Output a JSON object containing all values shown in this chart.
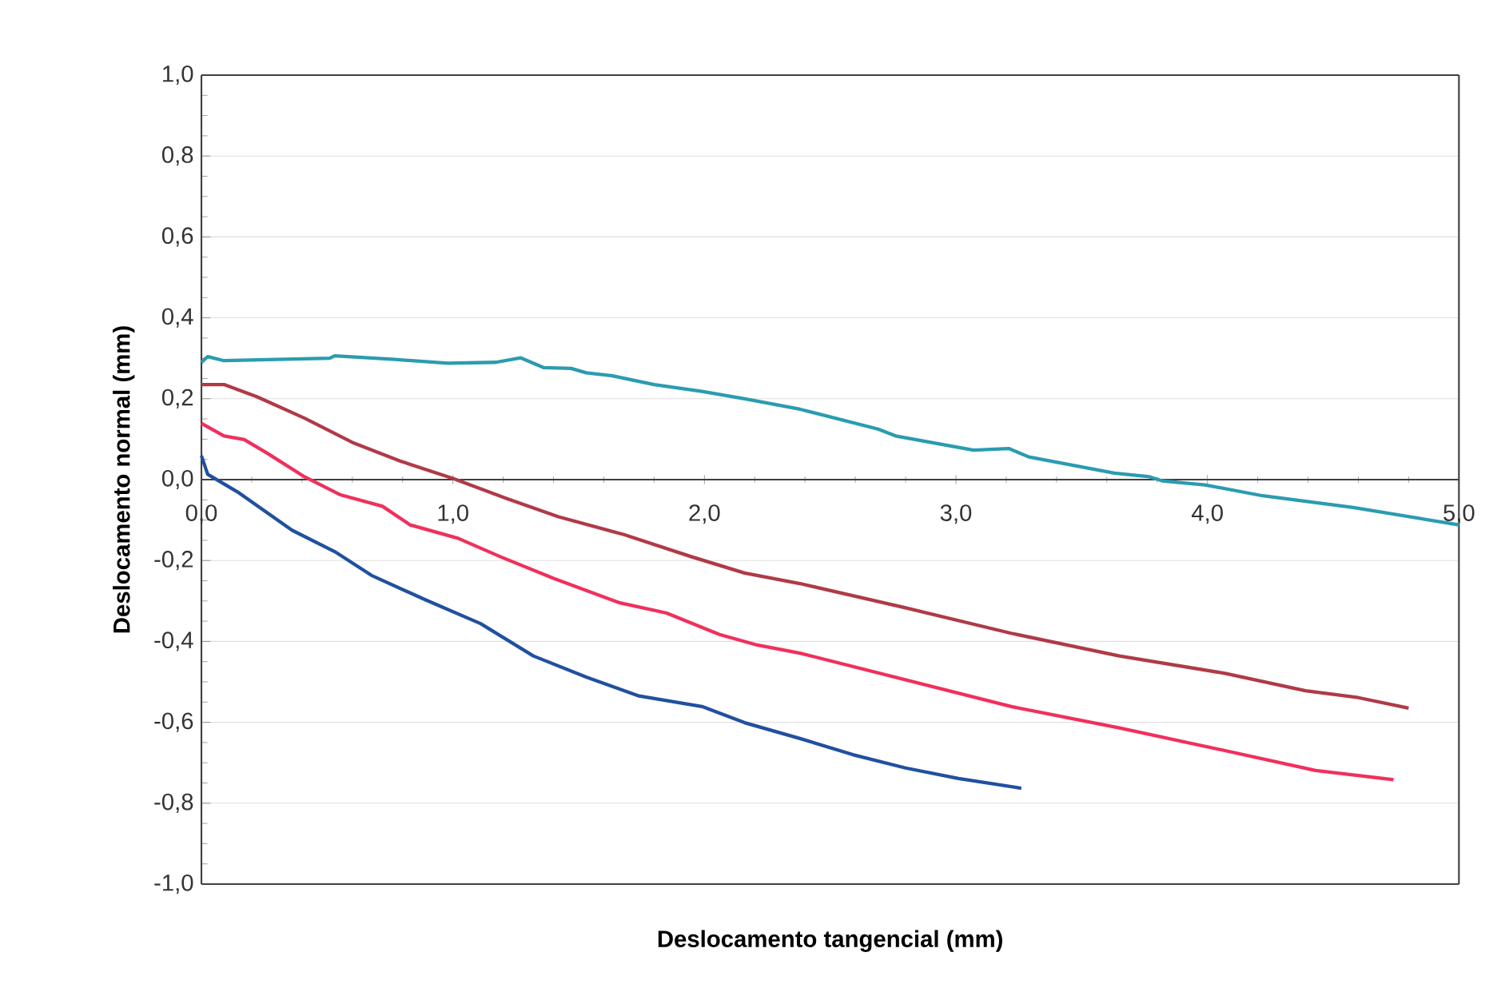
{
  "chart_data": {
    "type": "line",
    "xlabel": "Deslocamento tangencial (mm)",
    "ylabel": "Deslocamento normal (mm)",
    "xlim": [
      0,
      5
    ],
    "ylim": [
      -1,
      1
    ],
    "xticks": [
      {
        "value": 0,
        "label": "0,0"
      },
      {
        "value": 1,
        "label": "1,0"
      },
      {
        "value": 2,
        "label": "2,0"
      },
      {
        "value": 3,
        "label": "3,0"
      },
      {
        "value": 4,
        "label": "4,0"
      },
      {
        "value": 5,
        "label": "5,0"
      }
    ],
    "yticks": [
      {
        "value": -1,
        "label": "-1,0"
      },
      {
        "value": -0.8,
        "label": "-0,8"
      },
      {
        "value": -0.6,
        "label": "-0,6"
      },
      {
        "value": -0.4,
        "label": "-0,4"
      },
      {
        "value": -0.2,
        "label": "-0,2"
      },
      {
        "value": 0,
        "label": "0,0"
      },
      {
        "value": 0.2,
        "label": "0,2"
      },
      {
        "value": 0.4,
        "label": "0,4"
      },
      {
        "value": 0.6,
        "label": "0,6"
      },
      {
        "value": 0.8,
        "label": "0,8"
      },
      {
        "value": 1,
        "label": "1,0"
      }
    ],
    "grid": "y",
    "marker": "none",
    "line_style": "solid",
    "series": [
      {
        "color": "#2a9cb0",
        "x": [
          0,
          0.025,
          0.09,
          0.51,
          0.53,
          0.77,
          0.98,
          1.17,
          1.27,
          1.36,
          1.47,
          1.53,
          1.63,
          1.8,
          1.99,
          2.16,
          2.38,
          2.69,
          2.76,
          3.07,
          3.21,
          3.29,
          3.63,
          3.77,
          3.82,
          3.99,
          4.22,
          4.58,
          5.0
        ],
        "values": [
          0.29,
          0.304,
          0.294,
          0.3,
          0.306,
          0.297,
          0.288,
          0.29,
          0.301,
          0.277,
          0.275,
          0.264,
          0.257,
          0.235,
          0.218,
          0.2,
          0.174,
          0.125,
          0.108,
          0.073,
          0.077,
          0.056,
          0.016,
          0.007,
          -0.003,
          -0.013,
          -0.04,
          -0.069,
          -0.112
        ]
      },
      {
        "color": "#b03a48",
        "x": [
          0,
          0.09,
          0.22,
          0.41,
          0.6,
          0.79,
          1.0,
          1.21,
          1.42,
          1.68,
          1.95,
          2.16,
          2.38,
          2.8,
          3.22,
          3.65,
          4.07,
          4.39,
          4.6,
          4.8
        ],
        "values": [
          0.235,
          0.235,
          0.205,
          0.152,
          0.092,
          0.046,
          0.003,
          -0.046,
          -0.092,
          -0.136,
          -0.191,
          -0.231,
          -0.257,
          -0.317,
          -0.38,
          -0.436,
          -0.479,
          -0.522,
          -0.539,
          -0.565
        ]
      },
      {
        "color": "#f0305c",
        "x": [
          0,
          0.09,
          0.17,
          0.26,
          0.41,
          0.55,
          0.72,
          0.83,
          1.02,
          1.19,
          1.4,
          1.66,
          1.85,
          2.06,
          2.21,
          2.38,
          2.8,
          3.22,
          3.65,
          4.07,
          4.43,
          4.74
        ],
        "values": [
          0.139,
          0.108,
          0.099,
          0.066,
          0.007,
          -0.037,
          -0.066,
          -0.112,
          -0.145,
          -0.191,
          -0.244,
          -0.304,
          -0.33,
          -0.383,
          -0.409,
          -0.429,
          -0.495,
          -0.561,
          -0.614,
          -0.67,
          -0.719,
          -0.742
        ]
      },
      {
        "color": "#2050a0",
        "x": [
          0,
          0.025,
          0.15,
          0.36,
          0.53,
          0.68,
          0.89,
          1.11,
          1.32,
          1.53,
          1.74,
          1.99,
          2.16,
          2.38,
          2.59,
          2.8,
          3.01,
          3.26
        ],
        "values": [
          0.059,
          0.013,
          -0.033,
          -0.125,
          -0.178,
          -0.238,
          -0.297,
          -0.356,
          -0.436,
          -0.488,
          -0.535,
          -0.561,
          -0.601,
          -0.64,
          -0.68,
          -0.713,
          -0.739,
          -0.763
        ]
      }
    ]
  }
}
